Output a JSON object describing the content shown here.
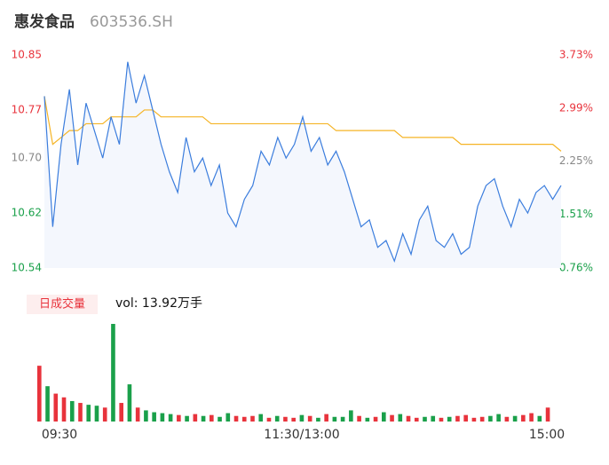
{
  "header": {
    "title": "惠发食品",
    "code": "603536.SH"
  },
  "chart_data": [
    {
      "type": "line",
      "ylim": [
        10.54,
        10.85
      ],
      "yticks": [
        10.85,
        10.77,
        {
          "value": 10.7,
          "label": "10.70"
        },
        10.62,
        10.54
      ],
      "ytick_colors": [
        "#e8333c",
        "#e8333c",
        "#888888",
        "#1aa04a",
        "#1aa04a"
      ],
      "y2lim": [
        0.76,
        3.73
      ],
      "y2ticks": [
        {
          "value": 3.73,
          "label": "3.73%"
        },
        {
          "value": 2.99,
          "label": "2.99%"
        },
        {
          "value": 2.25,
          "label": "2.25%"
        },
        {
          "value": 1.51,
          "label": "1.51%"
        },
        {
          "value": 0.76,
          "label": "0.76%"
        }
      ],
      "area_color": "#f4f7fd",
      "series": [
        {
          "color": "#3b7ddd",
          "values": [
            10.79,
            10.6,
            10.72,
            10.8,
            10.69,
            10.78,
            10.74,
            10.7,
            10.76,
            10.72,
            10.84,
            10.78,
            10.82,
            10.77,
            10.72,
            10.68,
            10.65,
            10.73,
            10.68,
            10.7,
            10.66,
            10.69,
            10.62,
            10.6,
            10.64,
            10.66,
            10.71,
            10.69,
            10.73,
            10.7,
            10.72,
            10.76,
            10.71,
            10.73,
            10.69,
            10.71,
            10.68,
            10.64,
            10.6,
            10.61,
            10.57,
            10.58,
            10.55,
            10.59,
            10.56,
            10.61,
            10.63,
            10.58,
            10.57,
            10.59,
            10.56,
            10.57,
            10.63,
            10.66,
            10.67,
            10.63,
            10.6,
            10.64,
            10.62,
            10.65,
            10.66,
            10.64,
            10.66
          ]
        },
        {
          "color": "#f5b425",
          "values": [
            10.79,
            10.72,
            10.73,
            10.74,
            10.74,
            10.75,
            10.75,
            10.75,
            10.76,
            10.76,
            10.76,
            10.76,
            10.77,
            10.77,
            10.76,
            10.76,
            10.76,
            10.76,
            10.76,
            10.76,
            10.75,
            10.75,
            10.75,
            10.75,
            10.75,
            10.75,
            10.75,
            10.75,
            10.75,
            10.75,
            10.75,
            10.75,
            10.75,
            10.75,
            10.75,
            10.74,
            10.74,
            10.74,
            10.74,
            10.74,
            10.74,
            10.74,
            10.74,
            10.73,
            10.73,
            10.73,
            10.73,
            10.73,
            10.73,
            10.73,
            10.72,
            10.72,
            10.72,
            10.72,
            10.72,
            10.72,
            10.72,
            10.72,
            10.72,
            10.72,
            10.72,
            10.72,
            10.71
          ]
        }
      ]
    },
    {
      "type": "bar",
      "legend": "日成交量",
      "summary": "vol: 13.92万手",
      "up_color": "#e8333c",
      "down_color": "#1aa04a",
      "values": [
        600,
        380,
        300,
        260,
        220,
        200,
        180,
        170,
        150,
        1050,
        200,
        400,
        150,
        120,
        100,
        90,
        80,
        70,
        60,
        80,
        60,
        70,
        50,
        90,
        60,
        50,
        60,
        80,
        40,
        60,
        50,
        40,
        70,
        60,
        40,
        80,
        50,
        50,
        120,
        60,
        40,
        50,
        100,
        70,
        80,
        60,
        40,
        50,
        60,
        40,
        50,
        60,
        70,
        40,
        50,
        60,
        80,
        50,
        60,
        70,
        90,
        60,
        150
      ],
      "x_labels": [
        "09:30",
        "11:30/13:00",
        "15:00"
      ]
    }
  ]
}
